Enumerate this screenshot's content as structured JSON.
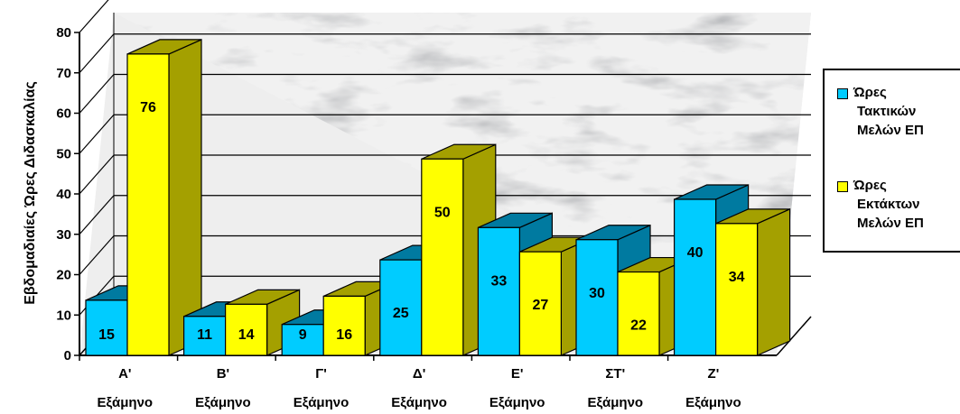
{
  "chart_data": {
    "type": "bar",
    "title": "",
    "ylabel": "Εβδομαδιαίες Ώρες Διδασκαλίας",
    "xlabel": "",
    "ylim": [
      0,
      80
    ],
    "yticks": [
      "0",
      "10",
      "20",
      "30",
      "40",
      "50",
      "60",
      "70",
      "80"
    ],
    "categories": [
      [
        "Α'",
        "Εξάμηνο"
      ],
      [
        "Β'",
        "Εξάμηνο"
      ],
      [
        "Γ'",
        "Εξάμηνο"
      ],
      [
        "Δ'",
        "Εξάμηνο"
      ],
      [
        "Ε'",
        "Εξάμηνο"
      ],
      [
        "ΣΤ'",
        "Εξάμηνο"
      ],
      [
        "Ζ'",
        "Εξάμηνο"
      ]
    ],
    "series": [
      {
        "name": [
          "Ώρες",
          "Τακτικών",
          "Μελών ΕΠ"
        ],
        "color": "#00ccff",
        "values": [
          15,
          11,
          9,
          25,
          33,
          30,
          40
        ]
      },
      {
        "name": [
          "Ώρες",
          "Εκτάκτων",
          "Μελών ΕΠ"
        ],
        "color": "#ffff00",
        "values": [
          76,
          14,
          16,
          50,
          27,
          22,
          34
        ]
      }
    ],
    "legend": "right",
    "grid": true,
    "background": "marble"
  }
}
